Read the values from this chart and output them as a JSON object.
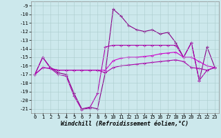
{
  "xlabel": "Windchill (Refroidissement éolien,°C)",
  "background_color": "#cce8ec",
  "grid_color": "#aacccc",
  "line_color1": "#880088",
  "line_color2": "#aa00aa",
  "line_color3": "#cc00cc",
  "line_color4": "#aa00aa",
  "xlim": [
    -0.5,
    23.5
  ],
  "ylim": [
    -21.5,
    -8.5
  ],
  "xticks": [
    0,
    1,
    2,
    3,
    4,
    5,
    6,
    7,
    8,
    9,
    10,
    11,
    12,
    13,
    14,
    15,
    16,
    17,
    18,
    19,
    20,
    21,
    22,
    23
  ],
  "yticks": [
    -9,
    -10,
    -11,
    -12,
    -13,
    -14,
    -15,
    -16,
    -17,
    -18,
    -19,
    -20,
    -21
  ],
  "hours": [
    0,
    1,
    2,
    3,
    4,
    5,
    6,
    7,
    8,
    9,
    10,
    11,
    12,
    13,
    14,
    15,
    16,
    17,
    18,
    19,
    20,
    21,
    22,
    23
  ],
  "line1": [
    -17.0,
    -15.0,
    -16.2,
    -16.8,
    -17.0,
    -19.2,
    -21.0,
    -20.8,
    -21.0,
    -16.8,
    -9.4,
    -10.2,
    -11.3,
    -11.8,
    -12.0,
    -11.8,
    -12.3,
    -12.1,
    -13.3,
    -15.0,
    -13.3,
    -17.7,
    -13.8,
    -16.2
  ],
  "line2": [
    -17.0,
    -15.0,
    -16.3,
    -17.0,
    -17.2,
    -19.5,
    -21.1,
    -20.9,
    -19.2,
    -13.8,
    -13.6,
    -13.6,
    -13.6,
    -13.6,
    -13.6,
    -13.6,
    -13.6,
    -13.6,
    -13.6,
    -15.0,
    -13.3,
    -17.7,
    -16.5,
    -16.2
  ],
  "line3": [
    -17.0,
    -16.2,
    -16.3,
    -16.5,
    -16.5,
    -16.5,
    -16.5,
    -16.5,
    -16.5,
    -16.5,
    -15.4,
    -15.1,
    -15.0,
    -15.0,
    -14.9,
    -14.8,
    -14.6,
    -14.5,
    -14.4,
    -15.0,
    -15.0,
    -15.5,
    -16.0,
    -16.2
  ],
  "line4": [
    -17.0,
    -16.2,
    -16.3,
    -16.5,
    -16.5,
    -16.5,
    -16.5,
    -16.5,
    -16.5,
    -16.8,
    -16.2,
    -16.0,
    -15.9,
    -15.8,
    -15.7,
    -15.6,
    -15.5,
    -15.4,
    -15.3,
    -15.5,
    -16.2,
    -16.3,
    -16.5,
    -16.2
  ],
  "tick_fontsize": 5,
  "xlabel_fontsize": 6,
  "marker_size": 3,
  "line_width": 0.8
}
